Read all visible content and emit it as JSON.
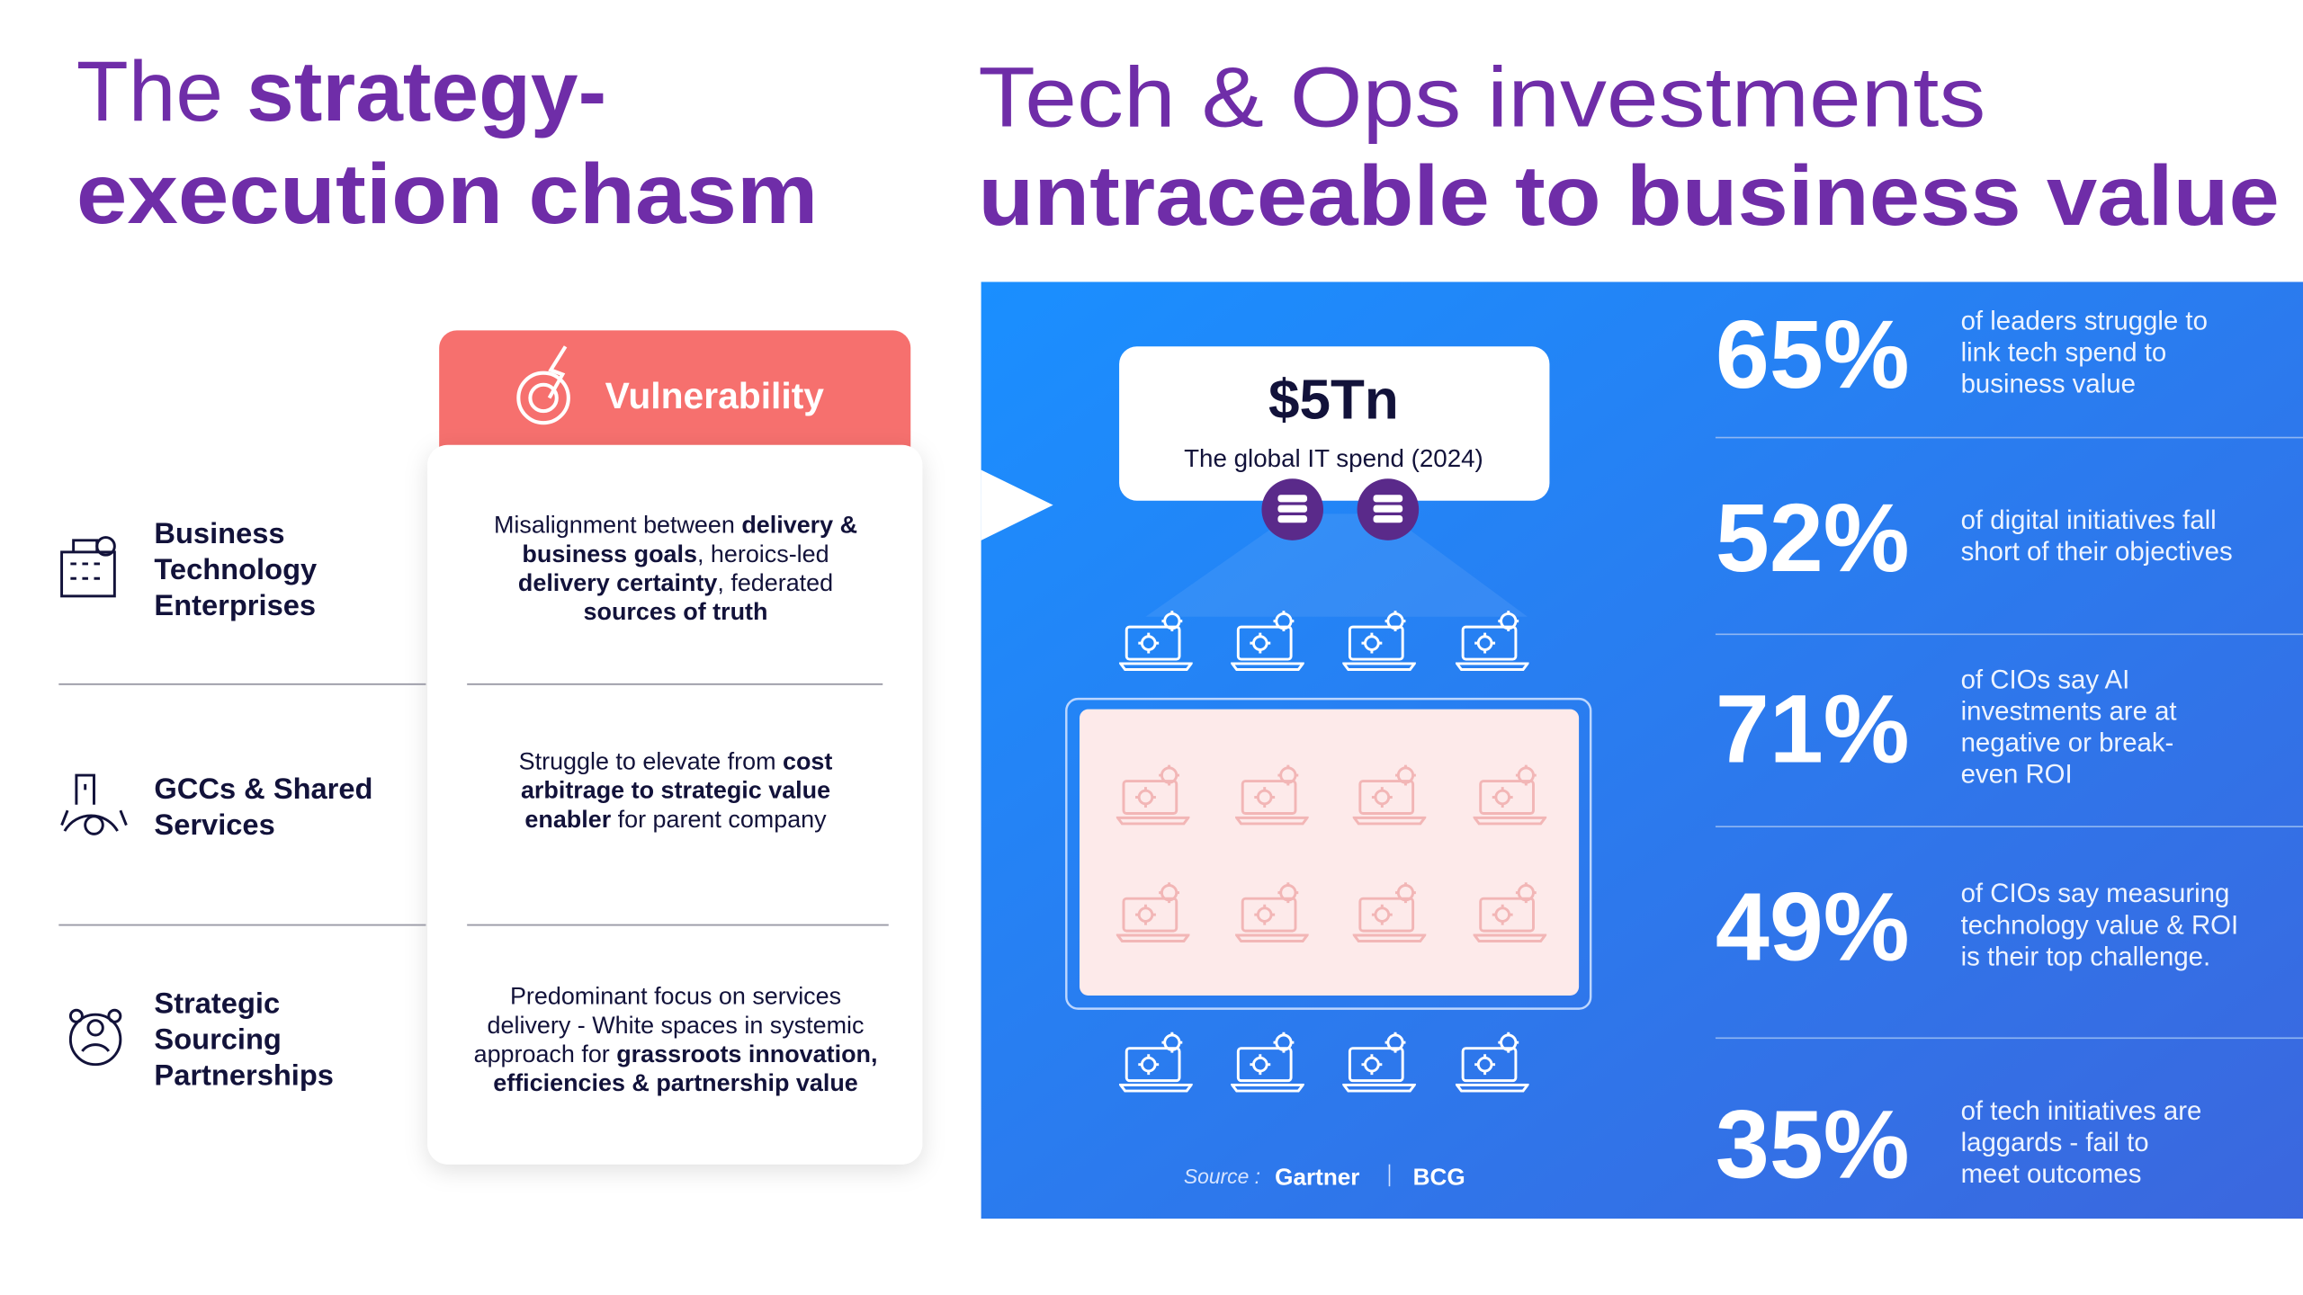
{
  "left_title": {
    "light": "The",
    "bold": "strategy-",
    "line2": "execution chasm"
  },
  "right_title": {
    "line1": "Tech & Ops investments",
    "line2": "untraceable to business value"
  },
  "vulnerability": "Vulnerability",
  "rows": [
    {
      "label": [
        "Business",
        "Technology",
        "Enterprises"
      ],
      "desc": [
        [
          {
            "t": "Misalignment between "
          },
          {
            "t": "delivery &",
            "b": true
          }
        ],
        [
          {
            "t": "business goals",
            "b": true
          },
          {
            "t": ", heroics-led"
          }
        ],
        [
          {
            "t": "delivery certainty",
            "b": true
          },
          {
            "t": ", federated"
          }
        ],
        [
          {
            "t": "sources of truth",
            "b": true
          }
        ]
      ]
    },
    {
      "label": [
        "GCCs & Shared",
        "Services"
      ],
      "desc": [
        [
          {
            "t": "Struggle to elevate from "
          },
          {
            "t": "cost",
            "b": true
          }
        ],
        [
          {
            "t": "arbitrage to strategic value",
            "b": true
          }
        ],
        [
          {
            "t": "enabler",
            "b": true
          },
          {
            "t": " for parent company"
          }
        ]
      ]
    },
    {
      "label": [
        "Strategic",
        "Sourcing",
        "Partnerships"
      ],
      "desc": [
        [
          {
            "t": "Predominant focus on services"
          }
        ],
        [
          {
            "t": "delivery - White spaces in systemic"
          }
        ],
        [
          {
            "t": "approach for "
          },
          {
            "t": "grassroots innovation,",
            "b": true
          }
        ],
        [
          {
            "t": "efficiencies & partnership value",
            "b": true
          }
        ]
      ]
    }
  ],
  "spend": {
    "value": "$5Tn",
    "caption": "The global IT spend (2024)"
  },
  "stats": [
    {
      "value": "65%",
      "text": [
        "of leaders struggle to",
        "link tech spend to",
        "business value"
      ]
    },
    {
      "value": "52%",
      "text": [
        "of digital initiatives fall",
        "short of their objectives"
      ]
    },
    {
      "value": "71%",
      "text": [
        "of CIOs say AI",
        "investments are at",
        "negative or break-",
        "even ROI"
      ]
    },
    {
      "value": "49%",
      "text": [
        "of CIOs say measuring",
        "technology value & ROI",
        "is their top challenge."
      ]
    },
    {
      "value": "35%",
      "text": [
        "of tech initiatives are",
        "laggards - fail to",
        "meet outcomes"
      ]
    }
  ],
  "source": {
    "label": "Source :",
    "gartner": "Gartner",
    "bcg": "BCG"
  }
}
